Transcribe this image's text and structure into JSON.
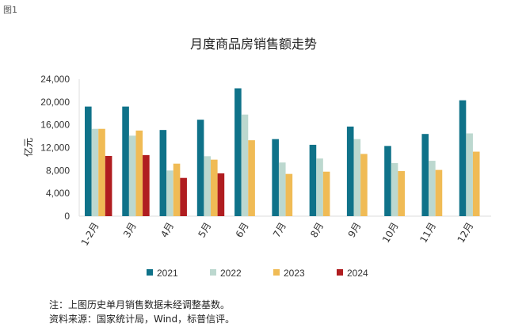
{
  "figure_label": "图1",
  "notes": [
    "注：上图历史单月销售数据未经调整基数。",
    "资料来源：国家统计局，Wind，标普信评。"
  ],
  "chart_data": {
    "type": "bar",
    "title": "月度商品房销售额走势",
    "xlabel": "",
    "ylabel": "亿元",
    "ylim": [
      0,
      24000
    ],
    "yticks": [
      0,
      4000,
      8000,
      12000,
      16000,
      20000,
      24000
    ],
    "ytick_labels": [
      "0",
      "4,000",
      "8,000",
      "12,000",
      "16,000",
      "20,000",
      "24,000"
    ],
    "categories": [
      "1-2月",
      "3月",
      "4月",
      "5月",
      "6月",
      "7月",
      "8月",
      "9月",
      "10月",
      "11月",
      "12月"
    ],
    "legend_position": "bottom",
    "series": [
      {
        "name": "2021",
        "color": "#0f7289",
        "values": [
          19200,
          19200,
          15100,
          16900,
          22400,
          13500,
          12500,
          15700,
          12300,
          14400,
          20300
        ]
      },
      {
        "name": "2022",
        "color": "#bcd8cf",
        "values": [
          15300,
          14100,
          8000,
          10500,
          17800,
          9400,
          10100,
          13500,
          9300,
          9700,
          14500
        ]
      },
      {
        "name": "2023",
        "color": "#f0bb55",
        "values": [
          15300,
          15000,
          9200,
          9900,
          13300,
          7400,
          7800,
          10900,
          7900,
          8100,
          11300
        ]
      },
      {
        "name": "2024",
        "color": "#b01d20",
        "values": [
          10550,
          10700,
          6700,
          7500,
          null,
          null,
          null,
          null,
          null,
          null,
          null
        ]
      }
    ]
  }
}
